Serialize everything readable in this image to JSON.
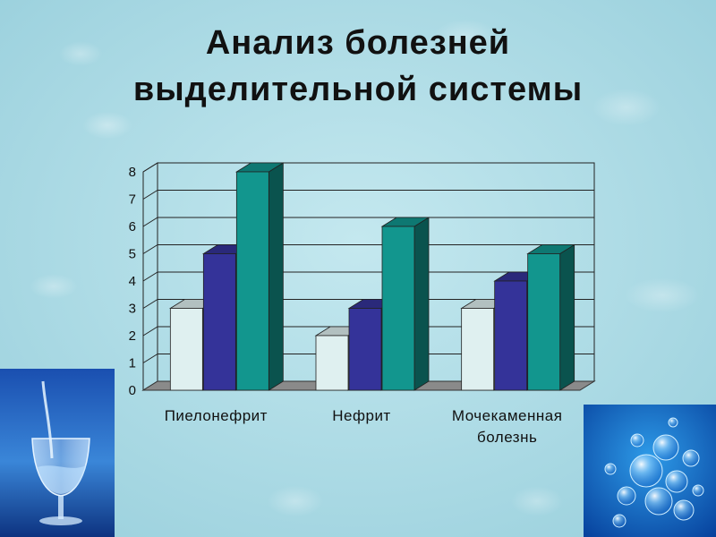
{
  "title_lines": [
    "Анализ болезней",
    "выделительной  системы"
  ],
  "chart_data": {
    "type": "bar",
    "style": "3d-clustered-column",
    "categories": [
      [
        "Пиелонефрит"
      ],
      [
        "Нефрит"
      ],
      [
        "Мочекаменная",
        "болезнь"
      ]
    ],
    "series": [
      {
        "values": [
          3,
          2,
          3
        ],
        "color": "#dff0f0"
      },
      {
        "values": [
          5,
          3,
          4
        ],
        "color": "#343399"
      },
      {
        "values": [
          8,
          6,
          5
        ],
        "color": "#12968e"
      }
    ],
    "yticks": [
      0,
      1,
      2,
      3,
      4,
      5,
      6,
      7,
      8
    ],
    "ylim": [
      0,
      8
    ],
    "grid": true,
    "legend": "none"
  },
  "images": {
    "left": "glass-of-water-photo",
    "right": "water-bubbles-photo"
  }
}
